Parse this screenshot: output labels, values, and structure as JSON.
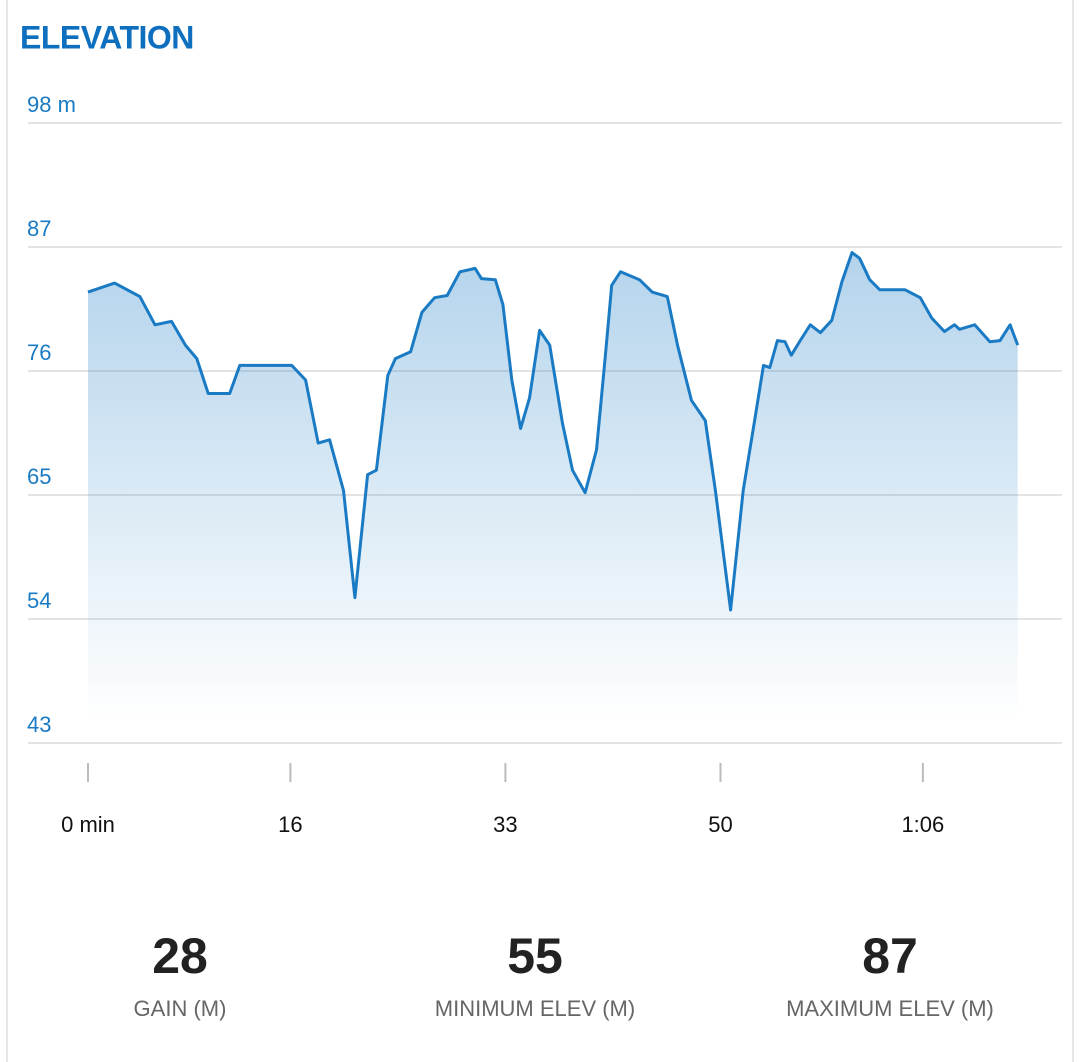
{
  "chart_data": {
    "type": "area",
    "title": "ELEVATION",
    "x": [
      0,
      2.1,
      4.1,
      5.3,
      6.6,
      7.7,
      8.6,
      9.5,
      11.2,
      12.0,
      16.1,
      17.2,
      18.2,
      19.1,
      20.2,
      21.1,
      22.1,
      22.8,
      23.7,
      24.3,
      25.5,
      26.4,
      27.4,
      28.4,
      29.4,
      30.6,
      31.1,
      32.2,
      32.8,
      33.5,
      34.2,
      34.9,
      35.7,
      36.5,
      37.5,
      38.3,
      39.3,
      40.2,
      40.9,
      41.4,
      42.1,
      43.6,
      44.6,
      45.8,
      46.6,
      47.7,
      48.8,
      49.6,
      50.8,
      51.8,
      52.7,
      53.4,
      53.9,
      54.5,
      55.1,
      55.6,
      56.3,
      57.1,
      57.9,
      58.8,
      59.6,
      60.4,
      61.0,
      61.8,
      62.6,
      64.6,
      65.8,
      66.7,
      67.7,
      68.5,
      68.9,
      70.1,
      71.3,
      72.1,
      72.9,
      73.5
    ],
    "series": [
      {
        "color": "#1a7bc4",
        "values": [
          83.0,
          83.8,
          82.6,
          80.1,
          80.4,
          78.3,
          77.1,
          74.0,
          74.0,
          76.5,
          76.5,
          75.2,
          69.6,
          69.9,
          65.4,
          55.9,
          66.8,
          67.2,
          75.6,
          77.1,
          77.7,
          81.2,
          82.5,
          82.7,
          84.8,
          85.1,
          84.2,
          84.1,
          81.9,
          75.2,
          70.9,
          73.6,
          79.6,
          78.3,
          71.4,
          67.2,
          65.2,
          69.0,
          77.4,
          83.6,
          84.8,
          84.1,
          83.0,
          82.6,
          78.3,
          73.4,
          71.6,
          65.4,
          54.8,
          65.4,
          71.6,
          76.5,
          76.3,
          78.7,
          78.6,
          77.4,
          78.7,
          80.1,
          79.4,
          80.5,
          83.9,
          86.5,
          86.0,
          84.1,
          83.2,
          83.2,
          82.5,
          80.7,
          79.5,
          80.1,
          79.7,
          80.1,
          78.6,
          78.7,
          80.1,
          78.3
        ]
      }
    ],
    "xlim": [
      0,
      77
    ],
    "xticks": [
      {
        "value": 0,
        "label": "0 min"
      },
      16,
      33,
      50,
      {
        "value": 66,
        "label": "1:06"
      }
    ],
    "ylim": [
      43,
      98
    ],
    "yticks": [
      43,
      54,
      65,
      76,
      87,
      {
        "value": 98,
        "label": "98 m"
      }
    ],
    "grid": true
  },
  "stats": [
    {
      "value": "28",
      "label": "GAIN (M)"
    },
    {
      "value": "55",
      "label": "MINIMUM ELEV (M)"
    },
    {
      "value": "87",
      "label": "MAXIMUM ELEV (M)"
    }
  ]
}
